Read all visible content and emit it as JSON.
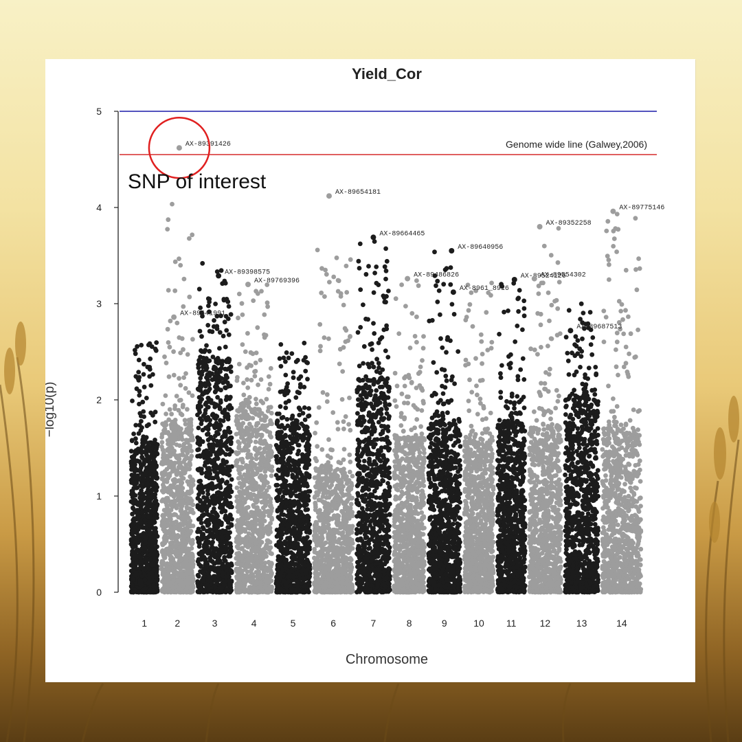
{
  "chart_data": {
    "type": "scatter",
    "subtype": "manhattan",
    "title": "Yield_Cor",
    "xlabel": "Chromosome",
    "ylabel": "−log10(p)",
    "ylim": [
      0,
      5
    ],
    "yticks": [
      0,
      1,
      2,
      3,
      4,
      5
    ],
    "chromosomes": [
      "1",
      "2",
      "3",
      "4",
      "5",
      "6",
      "7",
      "8",
      "9",
      "10",
      "11",
      "12",
      "13",
      "14"
    ],
    "colors": {
      "odd": "#1c1c1c",
      "even": "#9d9d9d",
      "genome_wide_line": "#d62a2a",
      "top_line": "#1a1aa8",
      "circle": "#e02020"
    },
    "thresholds": {
      "top": 5.0,
      "genome_wide": 4.55,
      "genome_wide_label": "Genome wide line (Galwey,2006)"
    },
    "callout": {
      "label": "SNP of interest",
      "snp": "AX-89391426"
    },
    "labeled_snps": [
      {
        "id": "AX-89391426",
        "chr": "2",
        "value": 4.62
      },
      {
        "id": "AX-89654181",
        "chr": "6",
        "value": 4.12
      },
      {
        "id": "AX-89775146",
        "chr": "14",
        "value": 3.96
      },
      {
        "id": "AX-89352258",
        "chr": "12",
        "value": 3.8
      },
      {
        "id": "AX-89664465",
        "chr": "7",
        "value": 3.69
      },
      {
        "id": "AX-89640956",
        "chr": "9",
        "value": 3.55
      },
      {
        "id": "AX-89398575",
        "chr": "3",
        "value": 3.29
      },
      {
        "id": "AX-89486826",
        "chr": "8",
        "value": 3.26
      },
      {
        "id": "AX-89769396",
        "chr": "4",
        "value": 3.2
      },
      {
        "id": "AX-89524126",
        "chr": "11",
        "value": 3.25
      },
      {
        "id": "AX-89554302",
        "chr": "12",
        "value": 3.26
      },
      {
        "id": "AX-8961_8916",
        "chr": "9",
        "value": 3.12
      },
      {
        "id": "AX-89641991",
        "chr": "2",
        "value": 2.86
      },
      {
        "id": "AX-89687513",
        "chr": "13",
        "value": 2.72
      }
    ],
    "chromosome_profile": [
      {
        "chr": "1",
        "dense_max": 1.55,
        "sparse_max": 2.8
      },
      {
        "chr": "2",
        "dense_max": 1.75,
        "sparse_max": 4.05
      },
      {
        "chr": "3",
        "dense_max": 2.4,
        "sparse_max": 3.42
      },
      {
        "chr": "4",
        "dense_max": 1.9,
        "sparse_max": 3.2
      },
      {
        "chr": "5",
        "dense_max": 1.75,
        "sparse_max": 2.6
      },
      {
        "chr": "6",
        "dense_max": 1.3,
        "sparse_max": 3.6
      },
      {
        "chr": "7",
        "dense_max": 2.2,
        "sparse_max": 3.69
      },
      {
        "chr": "8",
        "dense_max": 1.6,
        "sparse_max": 3.26
      },
      {
        "chr": "9",
        "dense_max": 1.75,
        "sparse_max": 3.55
      },
      {
        "chr": "10",
        "dense_max": 1.55,
        "sparse_max": 3.25
      },
      {
        "chr": "11",
        "dense_max": 1.75,
        "sparse_max": 3.25
      },
      {
        "chr": "12",
        "dense_max": 1.7,
        "sparse_max": 3.8
      },
      {
        "chr": "13",
        "dense_max": 2.0,
        "sparse_max": 3.02
      },
      {
        "chr": "14",
        "dense_max": 1.7,
        "sparse_max": 3.96
      }
    ]
  }
}
